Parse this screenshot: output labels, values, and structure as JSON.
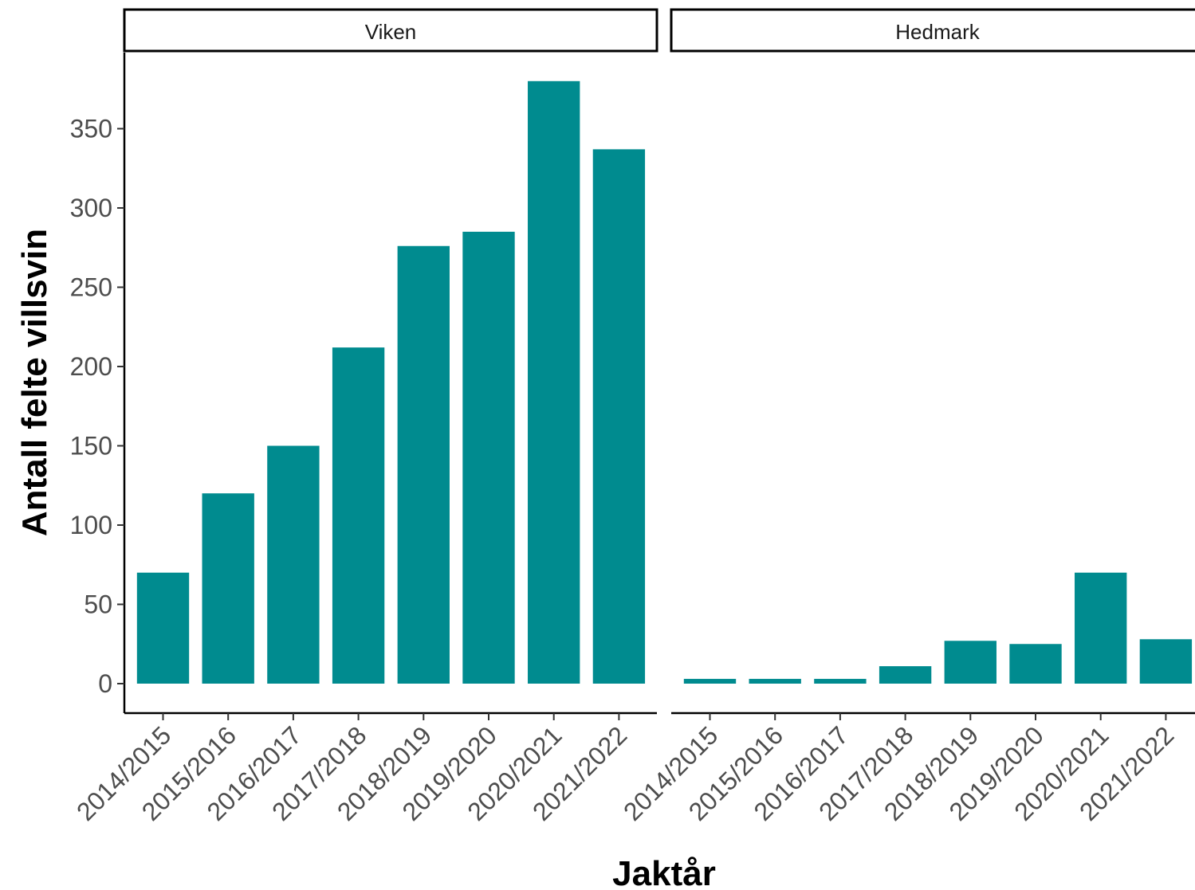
{
  "chart_data": {
    "type": "bar",
    "xlabel": "Jaktår",
    "ylabel": "Antall felte villsvin",
    "ylim": [
      0,
      385
    ],
    "yticks": [
      0,
      50,
      100,
      150,
      200,
      250,
      300,
      350
    ],
    "categories": [
      "2014/2015",
      "2015/2016",
      "2016/2017",
      "2017/2018",
      "2018/2019",
      "2019/2020",
      "2020/2021",
      "2021/2022"
    ],
    "bar_color": "#008B8F",
    "grid": false,
    "facets": [
      {
        "name": "Viken",
        "values": [
          70,
          120,
          150,
          212,
          276,
          285,
          380,
          337
        ]
      },
      {
        "name": "Hedmark",
        "values": [
          3,
          3,
          3,
          11,
          27,
          25,
          70,
          28
        ]
      }
    ]
  }
}
